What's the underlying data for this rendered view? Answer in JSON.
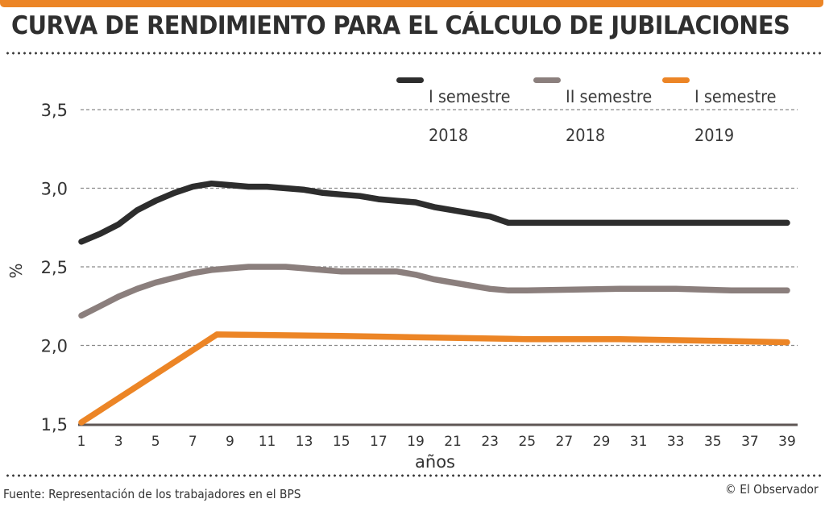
{
  "header": {
    "title": "CURVA DE RENDIMIENTO PARA EL CÁLCULO DE JUBILACIONES",
    "accent_color": "#ec8526"
  },
  "footer": {
    "source": "Fuente: Representación de los trabajadores en el BPS",
    "credit": "© El Observador"
  },
  "chart_data": {
    "type": "line",
    "title": "CURVA DE RENDIMIENTO PARA EL CÁLCULO DE JUBILACIONES",
    "xlabel": "años",
    "ylabel": "%",
    "xlim": [
      1,
      40
    ],
    "ylim": [
      1.5,
      3.5
    ],
    "x_ticks": [
      1,
      3,
      5,
      7,
      9,
      11,
      13,
      15,
      17,
      19,
      21,
      23,
      25,
      27,
      29,
      31,
      33,
      35,
      37,
      39
    ],
    "y_ticks": [
      1.5,
      2.0,
      2.5,
      3.0,
      3.5
    ],
    "y_tick_labels": [
      "1,5",
      "2,0",
      "2,5",
      "3,0",
      "3,5"
    ],
    "grid": "horizontal dashed",
    "legend_position": "top-right",
    "series": [
      {
        "name": "I semestre 2018",
        "label_line1": "I semestre",
        "label_line2": "2018",
        "color": "#2d2d2d",
        "points": [
          [
            1,
            2.66
          ],
          [
            2,
            2.71
          ],
          [
            3,
            2.77
          ],
          [
            4,
            2.86
          ],
          [
            5,
            2.92
          ],
          [
            6,
            2.97
          ],
          [
            7,
            3.01
          ],
          [
            8,
            3.03
          ],
          [
            9,
            3.02
          ],
          [
            10,
            3.01
          ],
          [
            11,
            3.01
          ],
          [
            12,
            3.0
          ],
          [
            13,
            2.99
          ],
          [
            14,
            2.97
          ],
          [
            15,
            2.96
          ],
          [
            16,
            2.95
          ],
          [
            17,
            2.93
          ],
          [
            18,
            2.92
          ],
          [
            19,
            2.91
          ],
          [
            20,
            2.88
          ],
          [
            21,
            2.86
          ],
          [
            22,
            2.84
          ],
          [
            23,
            2.82
          ],
          [
            24,
            2.78
          ],
          [
            25,
            2.78
          ],
          [
            30,
            2.78
          ],
          [
            35,
            2.78
          ],
          [
            39,
            2.78
          ]
        ]
      },
      {
        "name": "II semestre 2018",
        "label_line1": "II semestre",
        "label_line2": "2018",
        "color": "#8b7f7d",
        "points": [
          [
            1,
            2.19
          ],
          [
            2,
            2.25
          ],
          [
            3,
            2.31
          ],
          [
            4,
            2.36
          ],
          [
            5,
            2.4
          ],
          [
            6,
            2.43
          ],
          [
            7,
            2.46
          ],
          [
            8,
            2.48
          ],
          [
            9,
            2.49
          ],
          [
            10,
            2.5
          ],
          [
            11,
            2.5
          ],
          [
            12,
            2.5
          ],
          [
            13,
            2.49
          ],
          [
            14,
            2.48
          ],
          [
            15,
            2.47
          ],
          [
            16,
            2.47
          ],
          [
            17,
            2.47
          ],
          [
            18,
            2.47
          ],
          [
            19,
            2.45
          ],
          [
            20,
            2.42
          ],
          [
            21,
            2.4
          ],
          [
            22,
            2.38
          ],
          [
            23,
            2.36
          ],
          [
            24,
            2.35
          ],
          [
            25,
            2.35
          ],
          [
            30,
            2.36
          ],
          [
            33,
            2.36
          ],
          [
            36,
            2.35
          ],
          [
            39,
            2.35
          ]
        ]
      },
      {
        "name": "I semestre 2019",
        "label_line1": "I semestre",
        "label_line2": "2019",
        "color": "#ec8526",
        "points": [
          [
            1,
            1.51
          ],
          [
            8.3,
            2.07
          ],
          [
            15,
            2.06
          ],
          [
            20,
            2.05
          ],
          [
            25,
            2.04
          ],
          [
            30,
            2.04
          ],
          [
            35,
            2.03
          ],
          [
            39,
            2.02
          ]
        ]
      }
    ]
  }
}
